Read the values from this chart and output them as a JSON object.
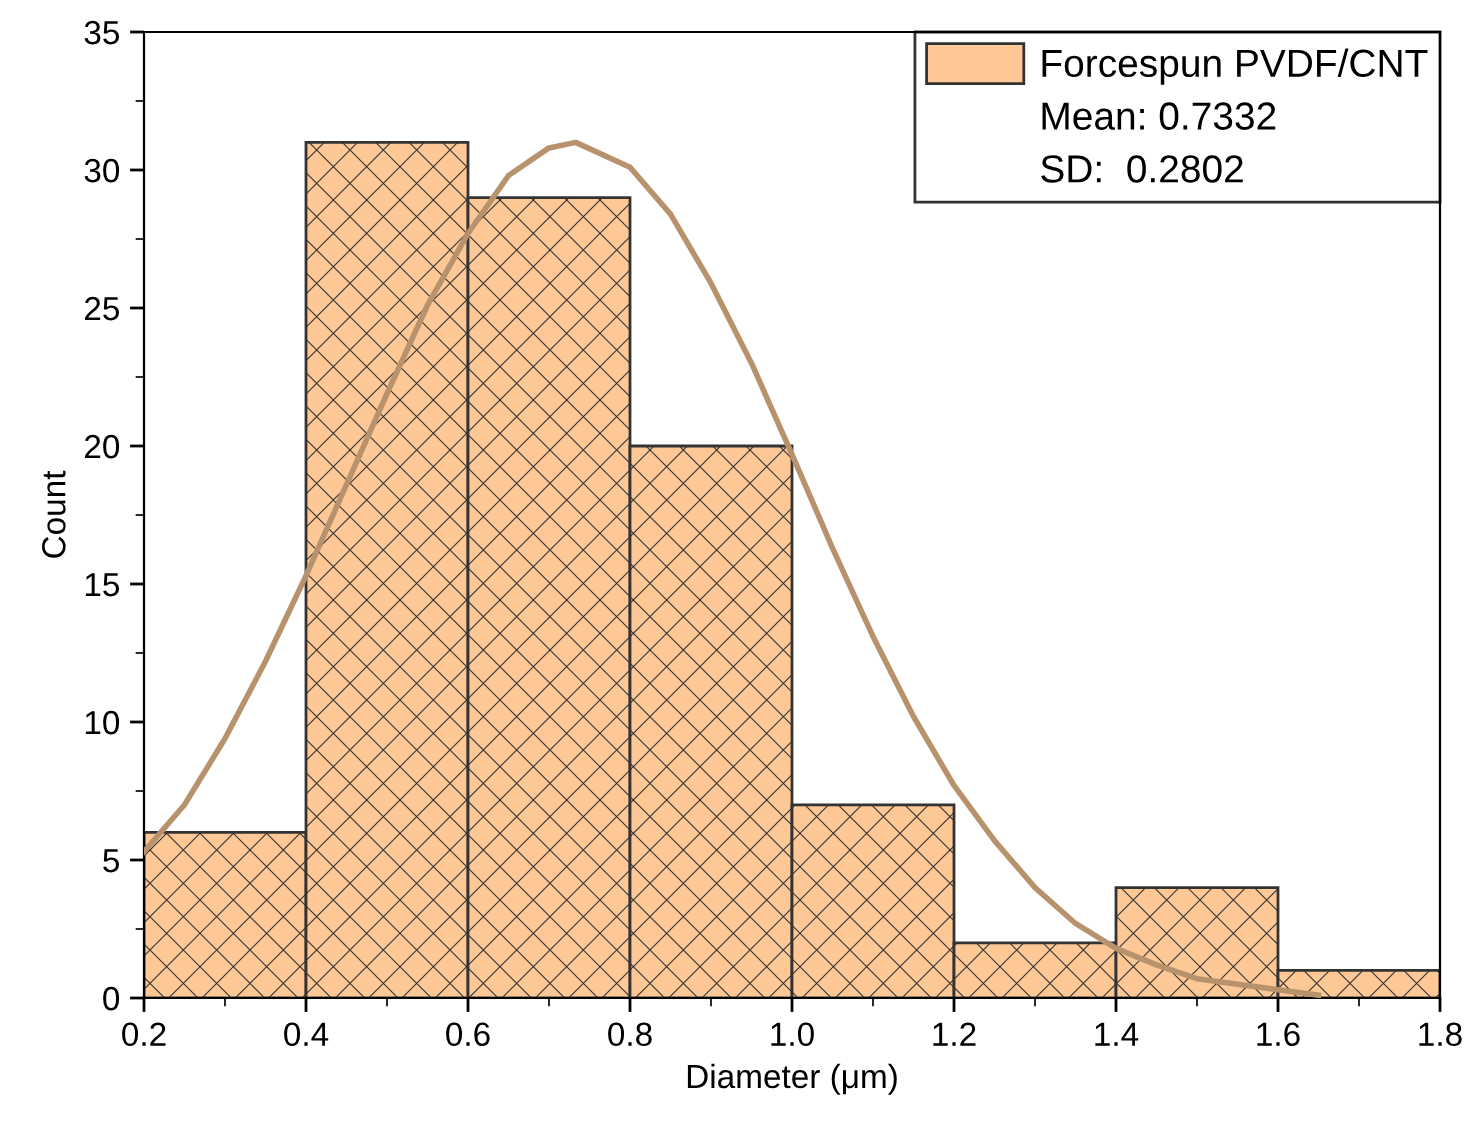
{
  "chart_data": {
    "type": "histogram",
    "xlabel": "Diameter (μm)",
    "ylabel": "Count",
    "bins": [
      0.2,
      0.4,
      0.6,
      0.8,
      1.0,
      1.2,
      1.4,
      1.6,
      1.8
    ],
    "series": [
      {
        "type": "histogram",
        "name": "Forcespun PVDF/CNT",
        "color": "#fdc896",
        "values": [
          6,
          31,
          29,
          20,
          7,
          2,
          4,
          1
        ]
      },
      {
        "type": "line",
        "color": "#b8926c",
        "x": [
          0.2,
          0.25,
          0.3,
          0.35,
          0.4,
          0.45,
          0.5,
          0.55,
          0.6,
          0.65,
          0.7,
          0.733,
          0.8,
          0.85,
          0.9,
          0.95,
          1.0,
          1.05,
          1.1,
          1.15,
          1.2,
          1.25,
          1.3,
          1.35,
          1.4,
          1.45,
          1.5,
          1.6,
          1.65
        ],
        "values": [
          5.3,
          7.0,
          9.4,
          12.2,
          15.3,
          18.6,
          21.9,
          25.1,
          27.7,
          29.8,
          30.8,
          31.0,
          30.1,
          28.4,
          25.9,
          23.0,
          19.7,
          16.3,
          13.1,
          10.2,
          7.7,
          5.7,
          4.0,
          2.7,
          1.8,
          1.2,
          0.7,
          0.3,
          0.1
        ]
      }
    ],
    "annotations": [
      "Mean: 0.7332",
      "SD:  0.2802"
    ],
    "xlim": [
      0.2,
      1.8
    ],
    "xticks": [
      0.2,
      0.4,
      0.6,
      0.8,
      {
        "value": 1.0,
        "label": "1.0"
      },
      1.2,
      1.4,
      1.6,
      1.8
    ],
    "ylim": [
      0,
      35
    ],
    "yticks": [
      0,
      5,
      10,
      15,
      20,
      25,
      30,
      35
    ],
    "grid": false,
    "legend": "top right"
  }
}
